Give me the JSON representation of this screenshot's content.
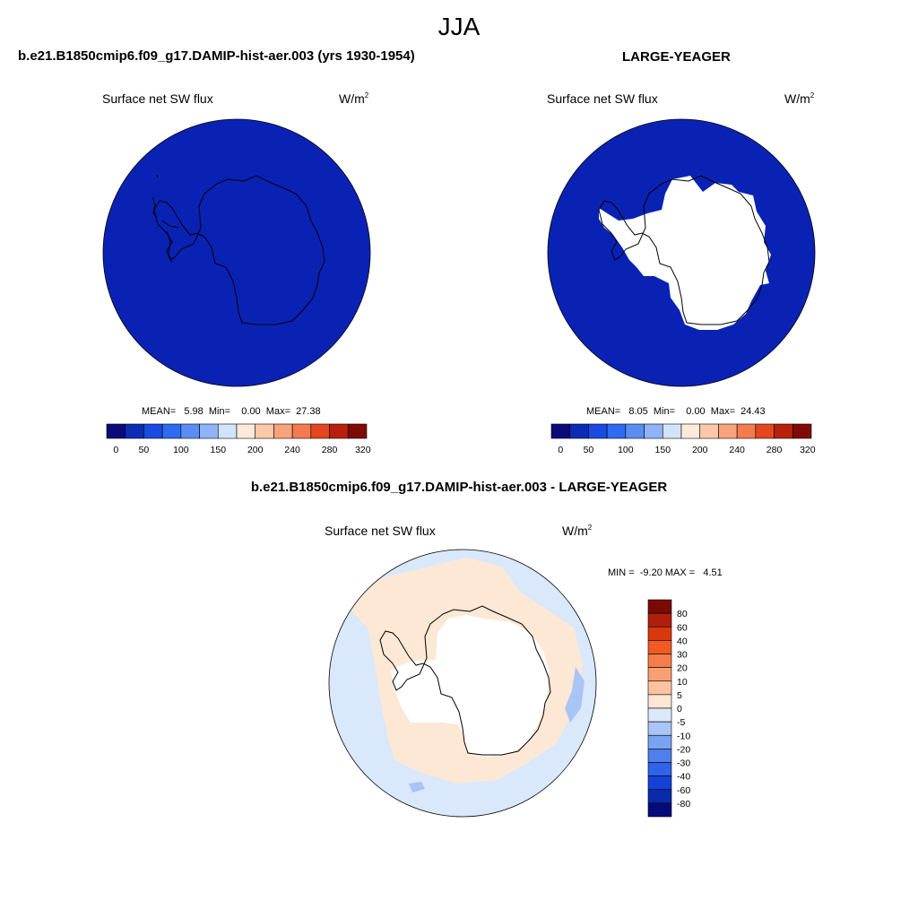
{
  "season": "JJA",
  "panel_left": {
    "title": "b.e21.B1850cmip6.f09_g17.DAMIP-hist-aer.003 (yrs 1930-1954)",
    "variable": "Surface net SW flux",
    "units_base": "W/m",
    "units_exp": "2",
    "stats_text": "MEAN=   5.98  Min=    0.00  Max=  27.38",
    "mean": 5.98,
    "min": 0.0,
    "max": 27.38
  },
  "panel_right": {
    "title": "LARGE-YEAGER",
    "variable": "Surface net SW flux",
    "units_base": "W/m",
    "units_exp": "2",
    "stats_text": "MEAN=   8.05  Min=    0.00  Max=  24.43",
    "mean": 8.05,
    "min": 0.0,
    "max": 24.43
  },
  "panel_diff": {
    "title": "b.e21.B1850cmip6.f09_g17.DAMIP-hist-aer.003 - LARGE-YEAGER",
    "variable": "Surface net SW flux",
    "units_base": "W/m",
    "units_exp": "2",
    "stats_text": "MIN =  -9.20 MAX =   4.51",
    "min": -9.2,
    "max": 4.51
  },
  "chart_data": {
    "type": "heatmap",
    "projection": "south polar stereographic",
    "abs_colorbar": {
      "colors": [
        "#0a0a7a",
        "#0d2cb5",
        "#1a4be0",
        "#2f6bf0",
        "#5a8ef5",
        "#8fb3f8",
        "#d2e4fb",
        "#fdeadb",
        "#fbc9a9",
        "#f8a37c",
        "#f47a4f",
        "#e4471f",
        "#b8200e",
        "#7f0b06"
      ],
      "tick_labels": [
        "0",
        "50",
        "100",
        "150",
        "200",
        "240",
        "280",
        "320"
      ]
    },
    "diff_colorbar": {
      "colors": [
        "#7a0a06",
        "#b01e0e",
        "#d9380c",
        "#f25a24",
        "#f57d4a",
        "#f7a172",
        "#fbc3a0",
        "#fde6d4",
        "#dde9fb",
        "#a8c5f6",
        "#7aa3f1",
        "#4f7feb",
        "#2e63ea",
        "#1541d8",
        "#0a2aa8",
        "#050c7a"
      ],
      "tick_labels": [
        "80",
        "60",
        "40",
        "30",
        "20",
        "10",
        "5",
        "0",
        "-5",
        "-10",
        "-20",
        "-30",
        "-40",
        "-60",
        "-80"
      ]
    },
    "colors": {
      "left_field": "#0a22b4",
      "right_field": "#0a22b4",
      "diff_ocean": "#d9e8fb",
      "diff_positive": "#fde8d6",
      "diff_negative_patch": "#a9c4f5"
    }
  }
}
